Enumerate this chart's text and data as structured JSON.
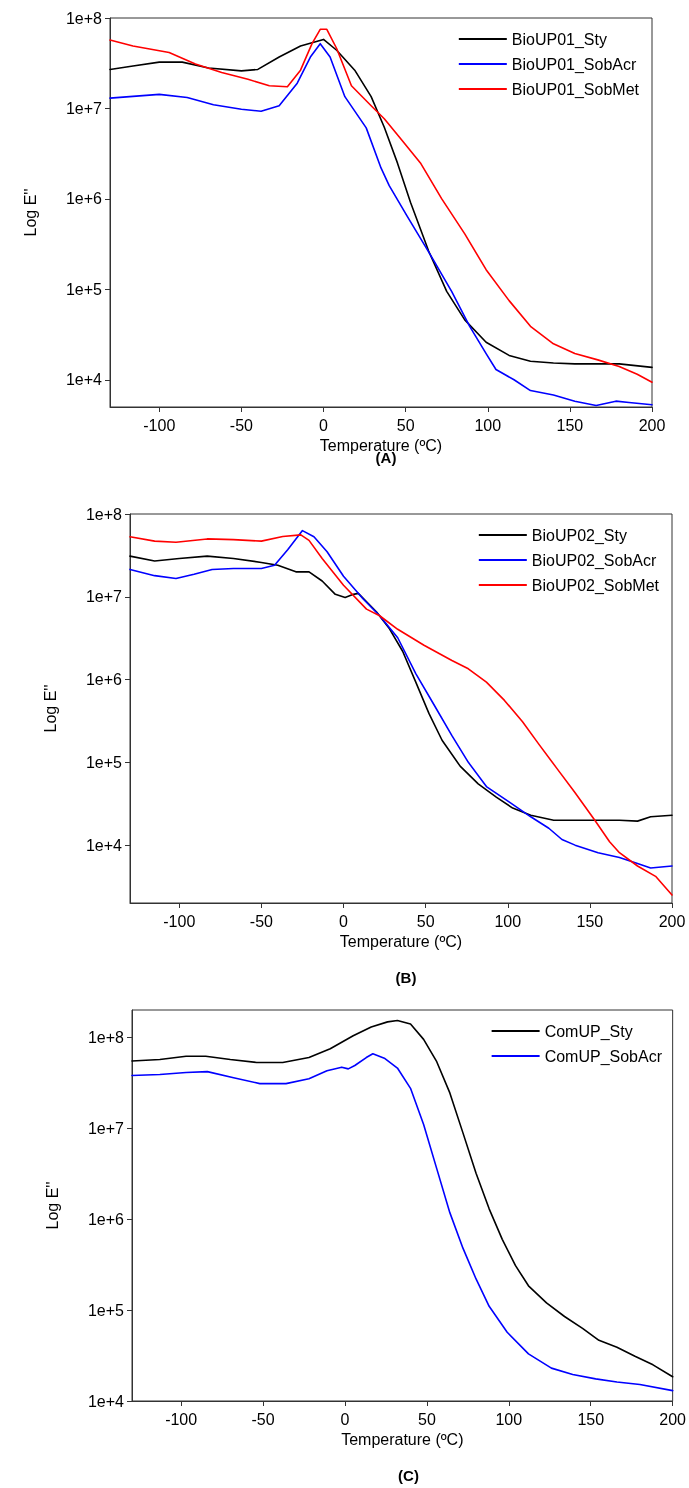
{
  "chart_data": [
    {
      "type": "line",
      "title": "(A)",
      "xlabel": "Temperature (ºC)",
      "ylabel": "Log E''",
      "log": "y",
      "grid": false,
      "legend": "top right",
      "marker": "none",
      "line_style": "solid",
      "xlim": [
        -130,
        200
      ],
      "xticks": [
        -100,
        -50,
        0,
        50,
        100,
        150,
        200
      ],
      "ylim": [
        5000,
        100000000
      ],
      "yticks": [
        {
          "value": 10000,
          "label": "1e+4"
        },
        {
          "value": 100000,
          "label": "1e+5"
        },
        {
          "value": 1000000,
          "label": "1e+6"
        },
        {
          "value": 10000000,
          "label": "1e+7"
        },
        {
          "value": 100000000,
          "label": "1e+8"
        }
      ],
      "series": [
        {
          "name": "BioUP01_Sty",
          "color": "#000000",
          "x": [
            -130,
            -116,
            -100,
            -86,
            -70,
            -50,
            -40,
            -27,
            -14,
            0,
            8,
            19,
            29,
            37,
            45,
            53,
            64,
            75,
            86,
            99,
            113,
            126,
            140,
            153,
            167,
            180,
            200
          ],
          "values": [
            27000000,
            29500000,
            32500000,
            32500000,
            28000000,
            26000000,
            27000000,
            37000000,
            49000000,
            58000000,
            44000000,
            26500000,
            13500000,
            6200000,
            2500000,
            910000,
            265000,
            95000,
            46000,
            26000,
            18600,
            16000,
            15300,
            15000,
            15000,
            15000,
            13700
          ]
        },
        {
          "name": "BioUP01_SobAcr",
          "color": "#0000ff",
          "x": [
            -130,
            -100,
            -83,
            -67,
            -50,
            -38,
            -27,
            -16,
            -8,
            -2,
            4,
            13,
            26,
            35,
            40,
            51,
            64,
            78,
            89,
            99,
            105,
            116,
            126,
            140,
            153,
            166,
            178,
            186,
            200
          ],
          "values": [
            13000000,
            14300000,
            13200000,
            11000000,
            9800000,
            9300000,
            10700000,
            19000000,
            37000000,
            52000000,
            37000000,
            13500000,
            6100000,
            2200000,
            1400000,
            640000,
            260000,
            95000,
            39000,
            19500,
            13000,
            10000,
            7600,
            6800,
            5800,
            5200,
            5800,
            5600,
            5300
          ]
        },
        {
          "name": "BioUP01_SobMet",
          "color": "#ff0000",
          "x": [
            -130,
            -116,
            -94,
            -78,
            -62,
            -46,
            -33,
            -22,
            -14,
            -7,
            -2,
            2,
            8,
            17,
            29,
            37,
            48,
            59,
            72,
            86,
            99,
            113,
            126,
            140,
            153,
            167,
            180,
            191,
            200
          ],
          "values": [
            57000000,
            49000000,
            41500000,
            31000000,
            25000000,
            21000000,
            17800000,
            17400000,
            26500000,
            52000000,
            75000000,
            75000000,
            46000000,
            17800000,
            10700000,
            7700000,
            4400000,
            2500000,
            1000000,
            410000,
            165000,
            75000,
            39000,
            25000,
            19500,
            16600,
            14000,
            11500,
            9400
          ]
        }
      ]
    },
    {
      "type": "line",
      "title": "(B)",
      "xlabel": "Temperature (ºC)",
      "ylabel": "Log E''",
      "log": "y",
      "grid": false,
      "legend": "top right",
      "marker": "none",
      "line_style": "solid",
      "xlim": [
        -130,
        200
      ],
      "xticks": [
        -100,
        -50,
        0,
        50,
        100,
        150,
        200
      ],
      "ylim": [
        2000,
        100000000
      ],
      "yticks": [
        {
          "value": 10000,
          "label": "1e+4"
        },
        {
          "value": 100000,
          "label": "1e+5"
        },
        {
          "value": 1000000,
          "label": "1e+6"
        },
        {
          "value": 10000000,
          "label": "1e+7"
        },
        {
          "value": 100000000,
          "label": "1e+8"
        }
      ],
      "series": [
        {
          "name": "BioUP02_Sty",
          "color": "#000000",
          "x": [
            -130,
            -115,
            -100,
            -83,
            -67,
            -50,
            -40,
            -29,
            -21,
            -13,
            -5,
            1,
            6,
            9,
            20,
            28,
            36,
            44,
            52,
            60,
            71,
            82,
            93,
            103,
            114,
            128,
            141,
            155,
            168,
            179,
            187,
            200
          ],
          "values": [
            31000000,
            27000000,
            29000000,
            31000000,
            29000000,
            26000000,
            24000000,
            20000000,
            20000000,
            15500000,
            10700000,
            9800000,
            10700000,
            11000000,
            6600000,
            4100000,
            2200000,
            930000,
            390000,
            185000,
            90000,
            55000,
            38000,
            28000,
            23000,
            20000,
            20000,
            20000,
            20000,
            19500,
            22000,
            23000
          ]
        },
        {
          "name": "BioUP02_SobAcr",
          "color": "#0000ff",
          "x": [
            -130,
            -115,
            -102,
            -91,
            -80,
            -67,
            -50,
            -42,
            -34,
            -25,
            -18,
            -10,
            0,
            12,
            22,
            33,
            44,
            55,
            66,
            76,
            87,
            101,
            114,
            125,
            133,
            141,
            155,
            168,
            179,
            187,
            200
          ],
          "values": [
            21400000,
            18000000,
            16600000,
            18700000,
            21400000,
            22000000,
            22000000,
            24000000,
            37000000,
            63000000,
            53000000,
            35000000,
            17700000,
            9400000,
            5900000,
            3200000,
            1180000,
            500000,
            210000,
            100000,
            51000,
            33000,
            22000,
            16000,
            11700,
            10000,
            8100,
            7100,
            6000,
            5300,
            5600
          ]
        },
        {
          "name": "BioUP02_SobMet",
          "color": "#ff0000",
          "x": [
            -130,
            -115,
            -102,
            -83,
            -67,
            -50,
            -37,
            -26,
            -21,
            -13,
            0,
            14,
            22,
            33,
            49,
            66,
            76,
            87,
            98,
            109,
            119,
            130,
            141,
            153,
            162,
            168,
            179,
            190,
            200
          ],
          "values": [
            53000000,
            47000000,
            45500000,
            50000000,
            49000000,
            47000000,
            53500000,
            56000000,
            48000000,
            29000000,
            13800000,
            7100000,
            5900000,
            4050000,
            2600000,
            1700000,
            1350000,
            930000,
            560000,
            310000,
            165000,
            84000,
            43000,
            20000,
            11000,
            8100,
            5600,
            4200,
            2500
          ]
        }
      ]
    },
    {
      "type": "line",
      "title": "(C)",
      "xlabel": "Temperature (ºC)",
      "ylabel": "Log E''",
      "log": "y",
      "grid": false,
      "legend": "top right",
      "marker": "none",
      "line_style": "solid",
      "xlim": [
        -130,
        200
      ],
      "xticks": [
        -100,
        -50,
        0,
        50,
        100,
        150,
        200
      ],
      "ylim": [
        10000,
        200000000
      ],
      "yticks": [
        {
          "value": 10000,
          "label": "1e+4"
        },
        {
          "value": 100000,
          "label": "1e+5"
        },
        {
          "value": 1000000,
          "label": "1e+6"
        },
        {
          "value": 10000000,
          "label": "1e+7"
        },
        {
          "value": 100000000,
          "label": "1e+8"
        }
      ],
      "series": [
        {
          "name": "ComUP_Sty",
          "color": "#000000",
          "x": [
            -130,
            -113,
            -97,
            -85,
            -70,
            -54,
            -38,
            -22,
            -9,
            5,
            16,
            26,
            32,
            40,
            48,
            56,
            64,
            72,
            80,
            88,
            96,
            104,
            112,
            123,
            134,
            145,
            155,
            166,
            177,
            188,
            200
          ],
          "values": [
            55000000,
            57000000,
            62000000,
            62000000,
            57000000,
            53000000,
            53000000,
            60000000,
            75000000,
            104000000,
            130000000,
            148000000,
            153000000,
            140000000,
            95000000,
            54000000,
            24500000,
            8900000,
            3200000,
            1300000,
            600000,
            310000,
            185000,
            120000,
            85000,
            63000,
            46500,
            39000,
            31000,
            25000,
            18500
          ]
        },
        {
          "name": "ComUP_SobAcr",
          "color": "#0000ff",
          "x": [
            -130,
            -113,
            -97,
            -84,
            -68,
            -52,
            -36,
            -22,
            -11,
            -2,
            2,
            6,
            13,
            17,
            24,
            32,
            40,
            48,
            56,
            64,
            72,
            80,
            88,
            99,
            112,
            126,
            139,
            153,
            166,
            180,
            200
          ],
          "values": [
            38000000,
            39000000,
            41000000,
            42000000,
            36000000,
            31000000,
            31000000,
            35000000,
            43000000,
            47000000,
            45000000,
            49000000,
            60000000,
            66000000,
            59000000,
            46000000,
            27500000,
            11000000,
            3600000,
            1180000,
            480000,
            220000,
            110000,
            57000,
            33000,
            23000,
            19600,
            17500,
            16200,
            15200,
            13000
          ]
        }
      ]
    }
  ]
}
